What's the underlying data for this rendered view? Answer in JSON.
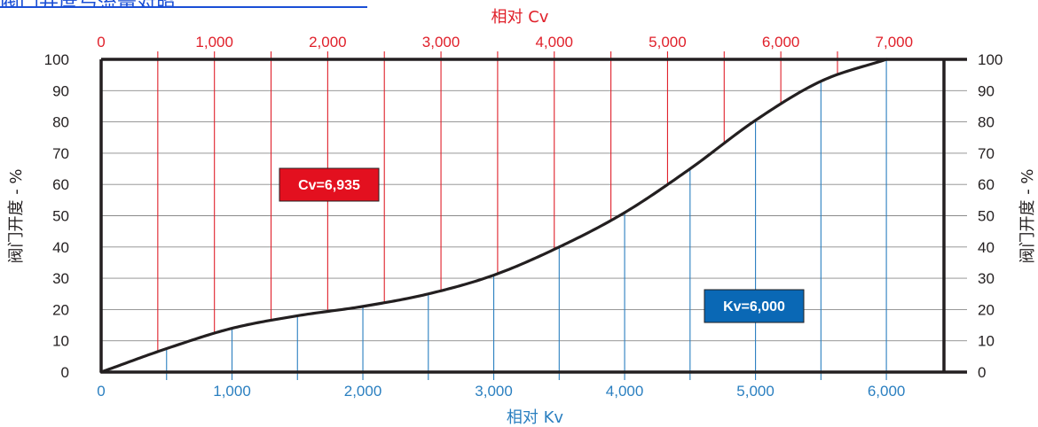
{
  "header_title": "阀门开度与流量对照",
  "chart_data": {
    "type": "line",
    "title": "",
    "top_axis": {
      "label": "相对 Cv",
      "range": [
        0,
        7440
      ],
      "ticks": [
        0,
        1000,
        2000,
        3000,
        4000,
        5000,
        6000,
        7000
      ],
      "tick_labels": [
        "0",
        "1,000",
        "2,000",
        "3,000",
        "4,000",
        "5,000",
        "6,000",
        "7,000"
      ],
      "color": "#e0202a"
    },
    "bottom_axis": {
      "label": "相对 Kv",
      "range": [
        0,
        6440
      ],
      "ticks": [
        0,
        1000,
        2000,
        3000,
        4000,
        5000,
        6000
      ],
      "tick_labels": [
        "0",
        "1,000",
        "2,000",
        "3,000",
        "4,000",
        "5,000",
        "6,000"
      ],
      "color": "#2a7fc0"
    },
    "y_axis": {
      "label": "阀门开度 - %",
      "range": [
        0,
        100
      ],
      "ticks": [
        0,
        10,
        20,
        30,
        40,
        50,
        60,
        70,
        80,
        90,
        100
      ],
      "tick_labels": [
        "0",
        "10",
        "20",
        "30",
        "40",
        "50",
        "60",
        "70",
        "80",
        "90",
        "100"
      ]
    },
    "grid": true,
    "series": [
      {
        "units": "Kv",
        "x": [
          0,
          500,
          1000,
          1500,
          2000,
          2500,
          3000,
          3500,
          4000,
          4500,
          5000,
          5500,
          6000
        ],
        "y": [
          0,
          7.5,
          14,
          18,
          21,
          25,
          31,
          40,
          51,
          65,
          80.5,
          93,
          100
        ],
        "color": "#231f20"
      }
    ],
    "annotations": [
      {
        "text": "Cv=6,935",
        "color": "#e3101f"
      },
      {
        "text": "Kv=6,000",
        "color": "#0a68b5"
      }
    ]
  }
}
